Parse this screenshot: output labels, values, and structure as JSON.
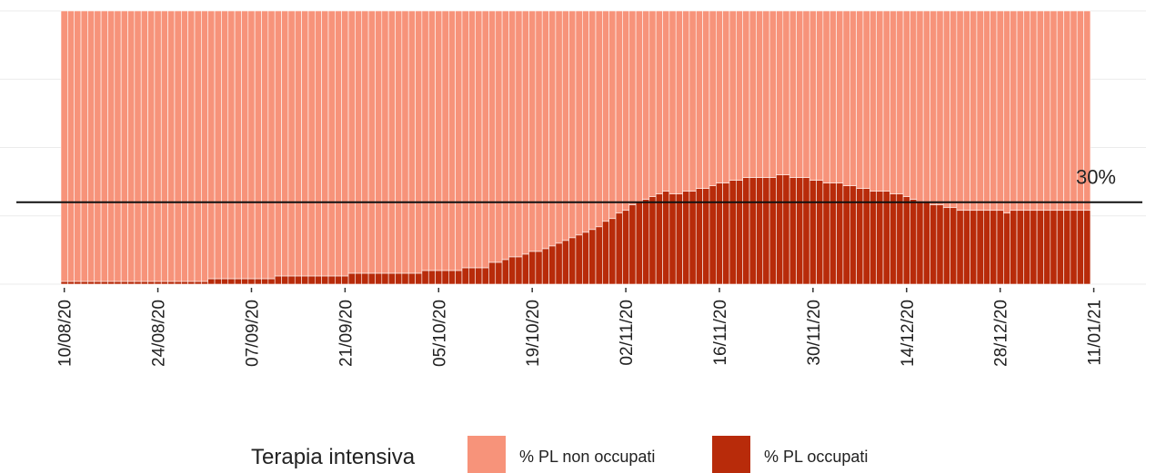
{
  "chart_data": {
    "type": "stacked_bar",
    "categories": [
      "10/08/20",
      null,
      null,
      null,
      null,
      null,
      null,
      null,
      null,
      null,
      null,
      null,
      null,
      null,
      "24/08/20",
      null,
      null,
      null,
      null,
      null,
      null,
      null,
      null,
      null,
      null,
      null,
      null,
      null,
      "07/09/20",
      null,
      null,
      null,
      null,
      null,
      null,
      null,
      null,
      null,
      null,
      null,
      null,
      null,
      "21/09/20",
      null,
      null,
      null,
      null,
      null,
      null,
      null,
      null,
      null,
      null,
      null,
      null,
      null,
      "05/10/20",
      null,
      null,
      null,
      null,
      null,
      null,
      null,
      null,
      null,
      null,
      null,
      null,
      null,
      "19/10/20",
      null,
      null,
      null,
      null,
      null,
      null,
      null,
      null,
      null,
      null,
      null,
      null,
      null,
      "02/11/20",
      null,
      null,
      null,
      null,
      null,
      null,
      null,
      null,
      null,
      null,
      null,
      null,
      null,
      "16/11/20",
      null,
      null,
      null,
      null,
      null,
      null,
      null,
      null,
      null,
      null,
      null,
      null,
      null,
      "30/11/20",
      null,
      null,
      null,
      null,
      null,
      null,
      null,
      null,
      null,
      null,
      null,
      null,
      null,
      "14/12/20",
      null,
      null,
      null,
      null,
      null,
      null,
      null,
      null,
      null,
      null,
      null,
      null,
      null,
      "28/12/20",
      null,
      null,
      null,
      null,
      null,
      null,
      null,
      null,
      null,
      null,
      null,
      null,
      null,
      "11/01/21"
    ],
    "series": [
      {
        "name": "% PL occupati",
        "color": "#b82b0a",
        "values": [
          1,
          1,
          1,
          1,
          1,
          1,
          1,
          1,
          1,
          1,
          1,
          1,
          1,
          1,
          1,
          1,
          1,
          1,
          1,
          1,
          1,
          1,
          2,
          2,
          2,
          2,
          2,
          2,
          2,
          2,
          2,
          2,
          3,
          3,
          3,
          3,
          3,
          3,
          3,
          3,
          3,
          3,
          3,
          4,
          4,
          4,
          4,
          4,
          4,
          4,
          4,
          4,
          4,
          4,
          5,
          5,
          5,
          5,
          5,
          5,
          6,
          6,
          6,
          6,
          8,
          8,
          9,
          10,
          10,
          11,
          12,
          12,
          13,
          14,
          15,
          16,
          17,
          18,
          19,
          20,
          21,
          23,
          24,
          26,
          27,
          29,
          30,
          31,
          32,
          33,
          34,
          33,
          33,
          34,
          34,
          35,
          35,
          36,
          37,
          37,
          38,
          38,
          39,
          39,
          39,
          39,
          39,
          40,
          40,
          39,
          39,
          39,
          38,
          38,
          37,
          37,
          37,
          36,
          36,
          35,
          35,
          34,
          34,
          34,
          33,
          33,
          32,
          31,
          30,
          30,
          29,
          29,
          28,
          28,
          27,
          27,
          27,
          27,
          27,
          27,
          27,
          26,
          27,
          27,
          27,
          27,
          27,
          27,
          27,
          27,
          27,
          27,
          27,
          27,
          null
        ]
      },
      {
        "name": "% PL non occupati",
        "color": "#f7937a",
        "values": [
          99,
          99,
          99,
          99,
          99,
          99,
          99,
          99,
          99,
          99,
          99,
          99,
          99,
          99,
          99,
          99,
          99,
          99,
          99,
          99,
          99,
          99,
          98,
          98,
          98,
          98,
          98,
          98,
          98,
          98,
          98,
          98,
          97,
          97,
          97,
          97,
          97,
          97,
          97,
          97,
          97,
          97,
          97,
          96,
          96,
          96,
          96,
          96,
          96,
          96,
          96,
          96,
          96,
          96,
          95,
          95,
          95,
          95,
          95,
          95,
          94,
          94,
          94,
          94,
          92,
          92,
          91,
          90,
          90,
          89,
          88,
          88,
          87,
          86,
          85,
          84,
          83,
          82,
          81,
          80,
          79,
          77,
          76,
          74,
          73,
          71,
          70,
          69,
          68,
          67,
          66,
          67,
          67,
          66,
          66,
          65,
          65,
          64,
          63,
          63,
          62,
          62,
          61,
          61,
          61,
          61,
          61,
          60,
          60,
          61,
          61,
          61,
          62,
          62,
          63,
          63,
          63,
          64,
          64,
          65,
          65,
          66,
          66,
          66,
          67,
          67,
          68,
          69,
          70,
          70,
          71,
          71,
          72,
          72,
          73,
          73,
          73,
          73,
          73,
          73,
          73,
          74,
          73,
          73,
          73,
          73,
          73,
          73,
          73,
          73,
          73,
          73,
          73,
          73,
          null
        ]
      }
    ],
    "legend_title": "Terapia intensiva",
    "legend_order": [
      1,
      0
    ],
    "ylim": [
      0,
      100
    ],
    "yticks": [
      0,
      25,
      50,
      75,
      100
    ],
    "grid": true,
    "hline": 30,
    "hline_label": "30%"
  }
}
